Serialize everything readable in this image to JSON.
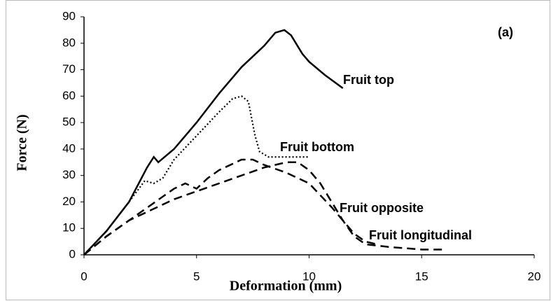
{
  "chart_data": {
    "type": "line",
    "annotations": [
      "(a)"
    ],
    "xlabel": "Deformation (mm)",
    "ylabel": "Force (N)",
    "xlim": [
      0,
      20
    ],
    "xticks": [
      0,
      5,
      10,
      15,
      20
    ],
    "ylim": [
      0,
      90
    ],
    "yticks": [
      0,
      10,
      20,
      30,
      40,
      50,
      60,
      70,
      80,
      90
    ],
    "grid": false,
    "series": [
      {
        "name": "Fruit top",
        "color": "#000000",
        "style": "solid",
        "x": [
          0,
          1,
          2,
          2.8,
          3.1,
          3.3,
          4,
          5,
          6,
          7,
          8,
          8.5,
          8.9,
          9.2,
          9.7,
          10,
          10.7,
          11.5
        ],
        "values": [
          0,
          9,
          20,
          33,
          37,
          35,
          40,
          50,
          61,
          71,
          79,
          84,
          85,
          83,
          76,
          73,
          68,
          63
        ]
      },
      {
        "name": "Fruit bottom",
        "color": "#000000",
        "style": "dotted",
        "x": [
          0,
          1,
          2,
          2.7,
          3.1,
          3.5,
          4,
          5,
          6,
          6.6,
          7,
          7.3,
          7.6,
          7.8,
          8.2,
          9,
          10
        ],
        "values": [
          0,
          9,
          20,
          28,
          27,
          29,
          36,
          45,
          54,
          59,
          60,
          58,
          45,
          39,
          37,
          37,
          37
        ]
      },
      {
        "name": "Fruit opposite",
        "color": "#000000",
        "style": "dashed",
        "x": [
          0,
          1,
          2,
          3,
          4,
          4.5,
          5,
          5.5,
          6,
          7,
          7.5,
          8,
          9,
          10,
          11,
          12,
          12.5,
          13
        ],
        "values": [
          0,
          7,
          13,
          19,
          25,
          27,
          25,
          29,
          32,
          36,
          36,
          34,
          31,
          27,
          18,
          8,
          5,
          4
        ]
      },
      {
        "name": "Fruit longitudinal",
        "color": "#000000",
        "style": "dashed",
        "x": [
          0,
          1,
          2,
          3,
          4,
          5,
          6,
          7,
          8,
          9,
          9.5,
          10,
          10.5,
          11,
          11.5,
          12,
          12.5,
          13.5,
          15,
          16
        ],
        "values": [
          0,
          7,
          13,
          17,
          21,
          24,
          27,
          30,
          33,
          35,
          35,
          32,
          27,
          20,
          13,
          7,
          4,
          3,
          2,
          2
        ]
      }
    ]
  }
}
